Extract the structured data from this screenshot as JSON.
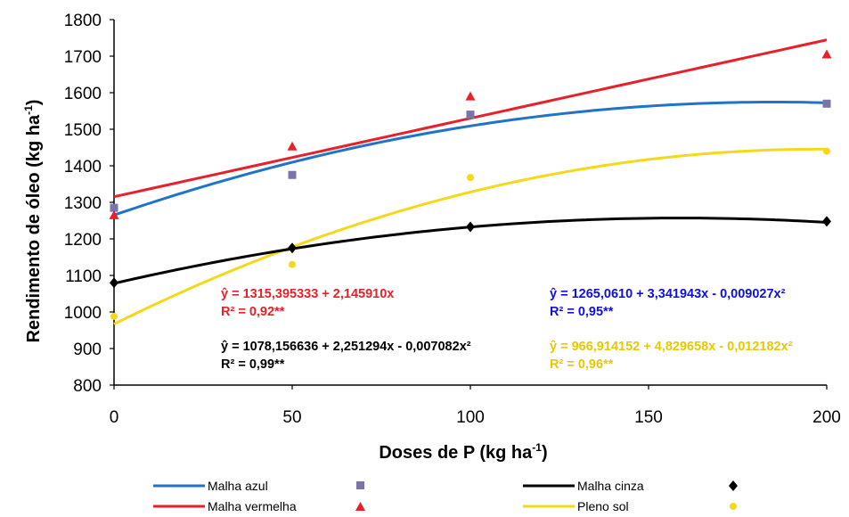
{
  "chart_data": {
    "type": "line",
    "xlabel": "Doses de P (kg ha",
    "xlabel_sup": "-1",
    "xlabel_close": ")",
    "ylabel": "Rendimento de óleo (kg ha",
    "ylabel_sup": "-1",
    "ylabel_close": ")",
    "xlim": [
      0,
      200
    ],
    "ylim": [
      800,
      1800
    ],
    "x_ticks": [
      0,
      50,
      100,
      150,
      200
    ],
    "y_ticks": [
      800,
      900,
      1000,
      1100,
      1200,
      1300,
      1400,
      1500,
      1600,
      1700,
      1800
    ],
    "x_tick_labels": [
      "0",
      "50",
      "100",
      "150",
      "200"
    ],
    "y_tick_labels": [
      "800",
      "900",
      "1000",
      "1100",
      "1200",
      "1300",
      "1400",
      "1500",
      "1600",
      "1700",
      "1800"
    ],
    "series": [
      {
        "key": "azul",
        "name": "Malha azul",
        "color": "#1f73c8",
        "marker": "square",
        "marker_color": "#7a74a8",
        "x": [
          0,
          50,
          100,
          200
        ],
        "y": [
          1285,
          1375,
          1540,
          1570
        ],
        "fit": [
          1265.061,
          3.341943,
          -0.009027
        ],
        "equation": "ŷ =  1265,0610 + 3,341943x - 0,009027x²",
        "r2": "R² = 0,95**"
      },
      {
        "key": "cinza",
        "name": "Malha cinza",
        "color": "#000000",
        "marker": "diamond",
        "marker_color": "#000000",
        "x": [
          0,
          50,
          100,
          200
        ],
        "y": [
          1080,
          1175,
          1233,
          1248
        ],
        "fit": [
          1078.156636,
          2.251294,
          -0.007082
        ],
        "equation": "ŷ = 1078,156636 + 2,251294x - 0,007082x²",
        "r2": "R² = 0,99**"
      },
      {
        "key": "vermelha",
        "name": "Malha vermelha",
        "color": "#e8202a",
        "marker": "triangle",
        "marker_color": "#e8202a",
        "x": [
          0,
          50,
          100,
          200
        ],
        "y": [
          1265,
          1453,
          1590,
          1705
        ],
        "fit": [
          1315.395333,
          2.14591,
          0
        ],
        "equation": "ŷ =  1315,395333 + 2,145910x",
        "r2": "R² = 0,92**"
      },
      {
        "key": "pleno",
        "name": "Pleno sol",
        "color": "#f5d81a",
        "marker": "circle",
        "marker_color": "#f5d81a",
        "x": [
          0,
          50,
          100,
          200
        ],
        "y": [
          988,
          1130,
          1368,
          1440
        ],
        "fit": [
          966.914152,
          4.829658,
          -0.012182
        ],
        "equation": "ŷ =  966,914152 + 4,829658x - 0,012182x²",
        "r2": "R² = 0,96**"
      }
    ],
    "legend_position": "bottom",
    "grid": false
  }
}
